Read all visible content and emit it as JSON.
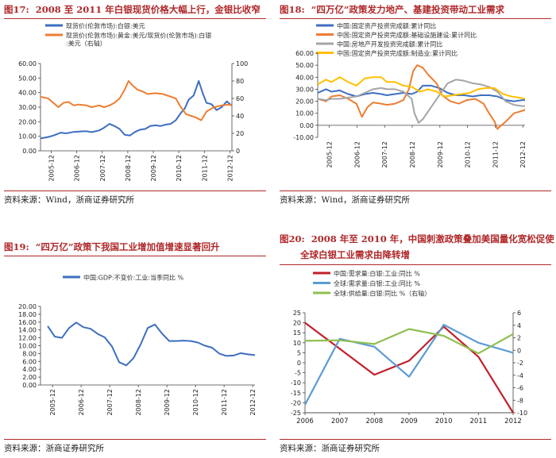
{
  "panels": [
    {
      "num": "图17:",
      "title": "2008 至 2011 年白银现货价格大幅上行，金银比收窄",
      "source": "资料来源：Wind，浙商证券研究所"
    },
    {
      "num": "图18:",
      "title": "“四万亿”政策发力地产、基建投资带动工业需求",
      "source": "资料来源：Wind，浙商证券研究所"
    },
    {
      "num": "图19:",
      "title": "“四万亿”政策下我国工业增加值增速显著回升",
      "source": "资料来源：浙商证券研究所"
    },
    {
      "num": "图20:",
      "title": "2008 年至 2010 年，中国刺激政策叠加美国量化宽松促使",
      "title2": "全球白银工业需求由降转增",
      "source": "资料来源：浙商证券研究所"
    }
  ],
  "chart_data": [
    {
      "type": "line",
      "legend": [
        "现货价(伦敦市场):白银:美元",
        "现货价(伦敦市场):黄金:美元/现货价(伦敦市场):白银:美元（右轴）"
      ],
      "x_ticks": [
        "2005-12",
        "2006-12",
        "2007-12",
        "2008-12",
        "2009-12",
        "2010-12",
        "2011-12",
        "2012-12"
      ],
      "ylim": [
        0,
        60
      ],
      "y_ticks": [
        "0.00",
        "10.00",
        "20.00",
        "30.00",
        "40.00",
        "50.00",
        "60.00"
      ],
      "y2lim": [
        0,
        100
      ],
      "y2_ticks": [
        "0",
        "20",
        "40",
        "60",
        "80",
        "100"
      ],
      "colors": [
        "#3d6fc0",
        "#ed7d31"
      ],
      "series": [
        {
          "name": "白银",
          "axis": "left",
          "x": [
            2005.5,
            2005.8,
            2006.0,
            2006.3,
            2006.5,
            2006.8,
            2007.0,
            2007.3,
            2007.5,
            2007.8,
            2008.0,
            2008.2,
            2008.4,
            2008.6,
            2008.8,
            2009.0,
            2009.2,
            2009.4,
            2009.6,
            2009.8,
            2010.0,
            2010.2,
            2010.4,
            2010.6,
            2010.8,
            2011.0,
            2011.15,
            2011.3,
            2011.5,
            2011.7,
            2011.85,
            2012.0,
            2012.2,
            2012.4,
            2012.6,
            2012.8,
            2013.0
          ],
          "values": [
            8.5,
            9.5,
            10.5,
            12.5,
            12,
            13,
            13.2,
            13.5,
            12.8,
            14,
            16,
            18.5,
            17,
            15,
            11,
            10.5,
            13,
            14.5,
            15,
            17,
            17.5,
            17,
            18,
            18.5,
            21,
            26,
            29,
            35,
            38,
            48,
            40,
            33,
            32,
            28,
            30,
            34,
            31
          ]
        },
        {
          "name": "金银比",
          "axis": "right",
          "x": [
            2005.5,
            2005.8,
            2006.0,
            2006.2,
            2006.4,
            2006.6,
            2006.8,
            2007.0,
            2007.3,
            2007.5,
            2007.8,
            2008.0,
            2008.2,
            2008.4,
            2008.6,
            2008.8,
            2008.95,
            2009.1,
            2009.3,
            2009.5,
            2009.7,
            2010.0,
            2010.3,
            2010.6,
            2010.8,
            2011.0,
            2011.2,
            2011.4,
            2011.6,
            2011.8,
            2012.0,
            2012.3,
            2012.6,
            2012.9,
            2013.0
          ],
          "values": [
            62,
            60,
            55,
            50,
            55,
            56,
            52,
            53,
            52,
            50,
            52,
            50,
            52,
            55,
            60,
            70,
            80,
            75,
            70,
            68,
            65,
            66,
            65,
            62,
            60,
            50,
            42,
            40,
            38,
            35,
            45,
            50,
            52,
            53,
            52
          ]
        }
      ]
    },
    {
      "type": "line",
      "legend": [
        "中国:固定资产投资完成额:累计同比",
        "中国:固定资产投资完成额:基础设施建设:累计同比",
        "中国:房地产开发投资完成额:累计同比",
        "中国:固定资产投资完成额:制造业:累计同比"
      ],
      "x_ticks": [
        "2005-12",
        "2006-12",
        "2007-12",
        "2008-12",
        "2009-12",
        "2010-12",
        "2011-12",
        "2012-12"
      ],
      "ylim": [
        -10,
        60
      ],
      "y_ticks": [
        "-10.00",
        "0.00",
        "10.00",
        "20.00",
        "30.00",
        "40.00",
        "50.00",
        "60.00"
      ],
      "colors": [
        "#3d6fc0",
        "#ed7d31",
        "#a5a5a5",
        "#ffc000"
      ],
      "series": [
        {
          "name": "固定资产投资",
          "x": [
            2005.5,
            2005.8,
            2006.0,
            2006.3,
            2006.6,
            2006.9,
            2007.2,
            2007.5,
            2007.8,
            2008.0,
            2008.3,
            2008.6,
            2008.9,
            2009.1,
            2009.3,
            2009.6,
            2009.9,
            2010.2,
            2010.5,
            2010.8,
            2011.1,
            2011.4,
            2011.7,
            2012.0,
            2012.3,
            2012.6,
            2012.9,
            2013.0
          ],
          "values": [
            27,
            30,
            28,
            29,
            26,
            24,
            26,
            27,
            26,
            25,
            26,
            27,
            26,
            28,
            33,
            33,
            31,
            27,
            25,
            25,
            24,
            25,
            25,
            24,
            21,
            20,
            21,
            21
          ]
        },
        {
          "name": "基础设施建设",
          "x": [
            2005.5,
            2005.8,
            2006.0,
            2006.3,
            2006.6,
            2006.9,
            2007.1,
            2007.3,
            2007.5,
            2007.8,
            2008.0,
            2008.3,
            2008.6,
            2008.8,
            2008.95,
            2009.1,
            2009.3,
            2009.5,
            2009.8,
            2010.0,
            2010.3,
            2010.6,
            2010.9,
            2011.2,
            2011.5,
            2011.7,
            2011.9,
            2012.0,
            2012.3,
            2012.6,
            2012.9,
            2013.0
          ],
          "values": [
            22,
            20,
            24,
            25,
            22,
            18,
            7,
            15,
            19,
            18,
            17,
            18,
            21,
            30,
            45,
            50,
            48,
            42,
            35,
            25,
            20,
            18,
            21,
            22,
            18,
            10,
            3,
            -3,
            3,
            10,
            12,
            13
          ]
        },
        {
          "name": "房地产开发投资",
          "x": [
            2005.5,
            2005.8,
            2006.0,
            2006.3,
            2006.6,
            2006.9,
            2007.2,
            2007.5,
            2007.8,
            2008.0,
            2008.3,
            2008.6,
            2008.9,
            2009.0,
            2009.15,
            2009.3,
            2009.6,
            2009.9,
            2010.2,
            2010.5,
            2010.8,
            2011.1,
            2011.4,
            2011.7,
            2012.0,
            2012.3,
            2012.6,
            2012.9,
            2013.0
          ],
          "values": [
            22,
            21,
            22,
            22,
            23,
            24,
            27,
            30,
            31,
            30,
            30,
            28,
            22,
            10,
            2,
            5,
            15,
            25,
            35,
            38,
            37,
            35,
            34,
            32,
            28,
            20,
            17,
            16,
            16
          ]
        },
        {
          "name": "制造业",
          "x": [
            2005.5,
            2005.8,
            2006.0,
            2006.3,
            2006.6,
            2006.9,
            2007.2,
            2007.5,
            2007.8,
            2008.0,
            2008.3,
            2008.6,
            2008.9,
            2009.2,
            2009.5,
            2009.8,
            2010.1,
            2010.4,
            2010.7,
            2011.0,
            2011.3,
            2011.6,
            2011.9,
            2012.2,
            2012.5,
            2012.8,
            2013.0
          ],
          "values": [
            34,
            38,
            36,
            40,
            36,
            33,
            39,
            40,
            40,
            36,
            36,
            33,
            32,
            28,
            30,
            28,
            24,
            25,
            26,
            27,
            30,
            31,
            31,
            26,
            24,
            23,
            22
          ]
        }
      ]
    },
    {
      "type": "line",
      "legend": [
        "中国:GDP:不变价:工业:当季同比 %"
      ],
      "x_ticks": [
        "2005-12",
        "2006-12",
        "2007-12",
        "2008-12",
        "2009-12",
        "2010-12",
        "2011-12",
        "2012-12"
      ],
      "ylim": [
        0,
        20
      ],
      "y_ticks": [
        "0.00",
        "2.00",
        "4.00",
        "6.00",
        "8.00",
        "10.00",
        "12.00",
        "14.00",
        "16.00",
        "18.00",
        "20.00"
      ],
      "colors": [
        "#3d6fc0"
      ],
      "series": [
        {
          "name": "工业GDP当季同比",
          "x": [
            2005.75,
            2006.0,
            2006.25,
            2006.5,
            2006.75,
            2007.0,
            2007.25,
            2007.5,
            2007.75,
            2008.0,
            2008.25,
            2008.5,
            2008.75,
            2009.0,
            2009.25,
            2009.5,
            2009.75,
            2010.0,
            2010.25,
            2010.5,
            2010.75,
            2011.0,
            2011.25,
            2011.5,
            2011.75,
            2012.0,
            2012.25,
            2012.5,
            2012.75,
            2013.0
          ],
          "values": [
            15.0,
            12.3,
            12.0,
            14.5,
            15.9,
            14.7,
            14.3,
            13.0,
            12.1,
            9.8,
            5.8,
            5.0,
            6.8,
            10.3,
            14.5,
            15.4,
            13.1,
            11.2,
            11.2,
            11.3,
            11.2,
            10.8,
            10.0,
            9.5,
            8.0,
            7.4,
            7.5,
            8.1,
            7.8,
            7.6
          ]
        }
      ]
    },
    {
      "type": "line",
      "legend": [
        "中国:需求量:白银:工业:同比 %",
        "全球:需求量:白银:工业:同比 %",
        "全球:供给量:白银:同比 %（右轴）"
      ],
      "categories": [
        "2006",
        "2007",
        "2008",
        "2009",
        "2010",
        "2011",
        "2012"
      ],
      "ylim": [
        -25,
        25
      ],
      "y_ticks": [
        "-25",
        "-20",
        "-15",
        "-10",
        "-5",
        "0",
        "5",
        "10",
        "15",
        "20",
        "25"
      ],
      "y2lim": [
        -10,
        6
      ],
      "y2_ticks": [
        "-10",
        "-8",
        "-6",
        "-4",
        "-2",
        "0",
        "2",
        "4",
        "6"
      ],
      "colors": [
        "#c0202a",
        "#5b9bd5",
        "#8fbf4f"
      ],
      "series": [
        {
          "name": "中国白银工业需求",
          "axis": "left",
          "values": [
            20,
            7,
            -6,
            1,
            18,
            3,
            -25
          ]
        },
        {
          "name": "全球白银工业需求",
          "axis": "left",
          "values": [
            -21,
            12,
            8,
            -7,
            19,
            10,
            5
          ]
        },
        {
          "name": "全球白银供给",
          "axis": "right",
          "values": [
            1.5,
            1.6,
            1.0,
            3.4,
            2.3,
            -0.5,
            2.6
          ]
        }
      ]
    }
  ]
}
